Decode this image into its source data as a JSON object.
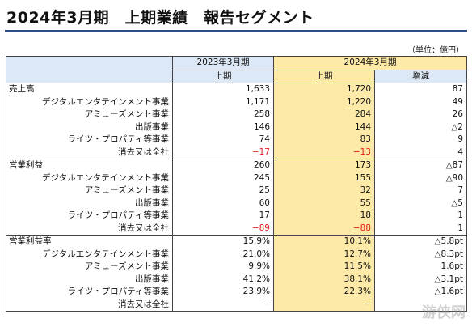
{
  "title": "2024年3月期　上期業績　報告セグメント",
  "unit": "（単位：億円）",
  "watermark": "游侠网",
  "header": {
    "prev_year": "2023年3月期",
    "cur_year": "2024年3月期",
    "prev_sub": "上期",
    "cur_sub": "上期",
    "diff": "増減"
  },
  "sections": [
    {
      "main": {
        "label": "売上高",
        "prev": "1,633",
        "cur": "1,720",
        "diff": "87"
      },
      "rows": [
        {
          "label": "デジタルエンタテインメント事業",
          "prev": "1,171",
          "cur": "1,220",
          "diff": "49"
        },
        {
          "label": "アミューズメント事業",
          "prev": "258",
          "cur": "284",
          "diff": "26"
        },
        {
          "label": "出版事業",
          "prev": "146",
          "cur": "144",
          "diff": "△2"
        },
        {
          "label": "ライツ・プロパティ等事業",
          "prev": "74",
          "cur": "83",
          "diff": "9"
        },
        {
          "label": "消去又は全社",
          "prev": "−17",
          "cur": "−13",
          "diff": "4",
          "neg": true
        }
      ]
    },
    {
      "main": {
        "label": "営業利益",
        "prev": "260",
        "cur": "173",
        "diff": "△87"
      },
      "rows": [
        {
          "label": "デジタルエンタテインメント事業",
          "prev": "245",
          "cur": "155",
          "diff": "△90"
        },
        {
          "label": "アミューズメント事業",
          "prev": "25",
          "cur": "32",
          "diff": "7"
        },
        {
          "label": "出版事業",
          "prev": "60",
          "cur": "55",
          "diff": "△5"
        },
        {
          "label": "ライツ・プロパティ等事業",
          "prev": "17",
          "cur": "18",
          "diff": "1"
        },
        {
          "label": "消去又は全社",
          "prev": "−89",
          "cur": "−88",
          "diff": "1",
          "neg": true
        }
      ]
    },
    {
      "main": {
        "label": "営業利益率",
        "prev": "15.9%",
        "cur": "10.1%",
        "diff": "△5.8pt"
      },
      "rows": [
        {
          "label": "デジタルエンタテインメント事業",
          "prev": "21.0%",
          "cur": "12.7%",
          "diff": "△8.3pt"
        },
        {
          "label": "アミューズメント事業",
          "prev": "9.9%",
          "cur": "11.5%",
          "diff": "1.6pt"
        },
        {
          "label": "出版事業",
          "prev": "41.2%",
          "cur": "38.1%",
          "diff": "△3.1pt"
        },
        {
          "label": "ライツ・プロパティ等事業",
          "prev": "23.9%",
          "cur": "22.3%",
          "diff": "△1.6pt"
        },
        {
          "label": "消去又は全社",
          "prev": "−",
          "cur": "−",
          "diff": ""
        }
      ]
    }
  ]
}
